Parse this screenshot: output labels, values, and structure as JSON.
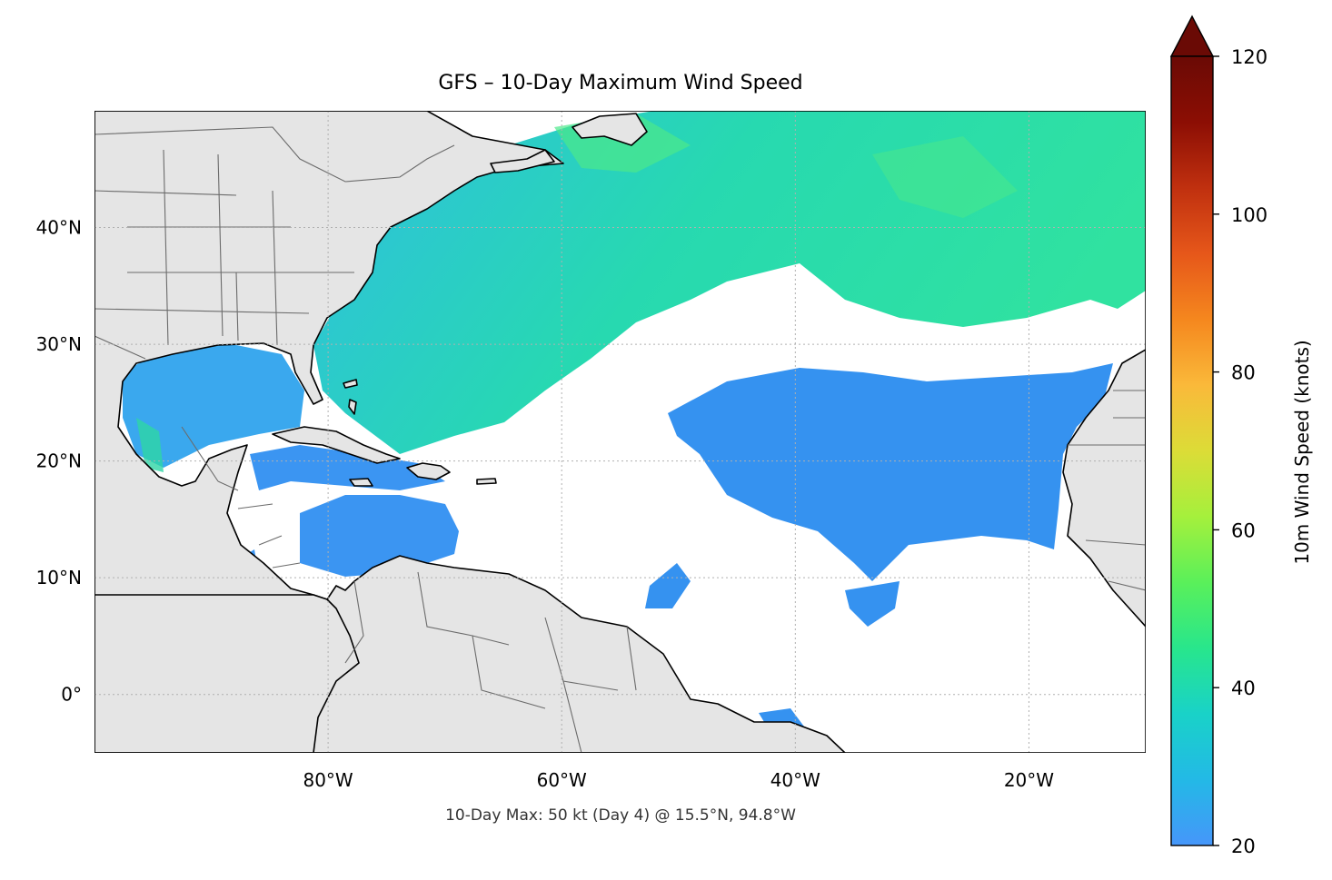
{
  "title": "GFS – 10-Day Maximum Wind Speed",
  "footer": "10-Day Max: 50 kt (Day 4) @ 15.5°N, 94.8°W",
  "map": {
    "extent": {
      "lon_min": -100,
      "lon_max": -10,
      "lat_min": -5,
      "lat_max": 50
    },
    "lon_ticks": [
      {
        "value": -80,
        "label": "80°W"
      },
      {
        "value": -60,
        "label": "60°W"
      },
      {
        "value": -40,
        "label": "40°W"
      },
      {
        "value": -20,
        "label": "20°W"
      }
    ],
    "lat_ticks": [
      {
        "value": 40,
        "label": "40°N"
      },
      {
        "value": 30,
        "label": "30°N"
      },
      {
        "value": 20,
        "label": "20°N"
      },
      {
        "value": 10,
        "label": "10°N"
      },
      {
        "value": 0,
        "label": "0°"
      }
    ],
    "gridlines": true,
    "land_color": "#e5e5e5",
    "coast_color": "#000000",
    "border_color": "#6b6b6b"
  },
  "colorbar": {
    "label": "10m Wind Speed (knots)",
    "min": 20,
    "max": 120,
    "extend": "max",
    "ticks": [
      {
        "value": 20,
        "label": "20"
      },
      {
        "value": 40,
        "label": "40"
      },
      {
        "value": 60,
        "label": "60"
      },
      {
        "value": 80,
        "label": "80"
      },
      {
        "value": 100,
        "label": "100"
      },
      {
        "value": 120,
        "label": "120"
      }
    ],
    "colors": [
      "#4696fa",
      "#23b9e6",
      "#19d2c8",
      "#28e68c",
      "#5af05a",
      "#a5f03c",
      "#dcdc37",
      "#fab93a",
      "#f5871e",
      "#e6571a",
      "#c0300f",
      "#8c0e04",
      "#6a0a05"
    ],
    "extend_color": "#6a0a05"
  }
}
